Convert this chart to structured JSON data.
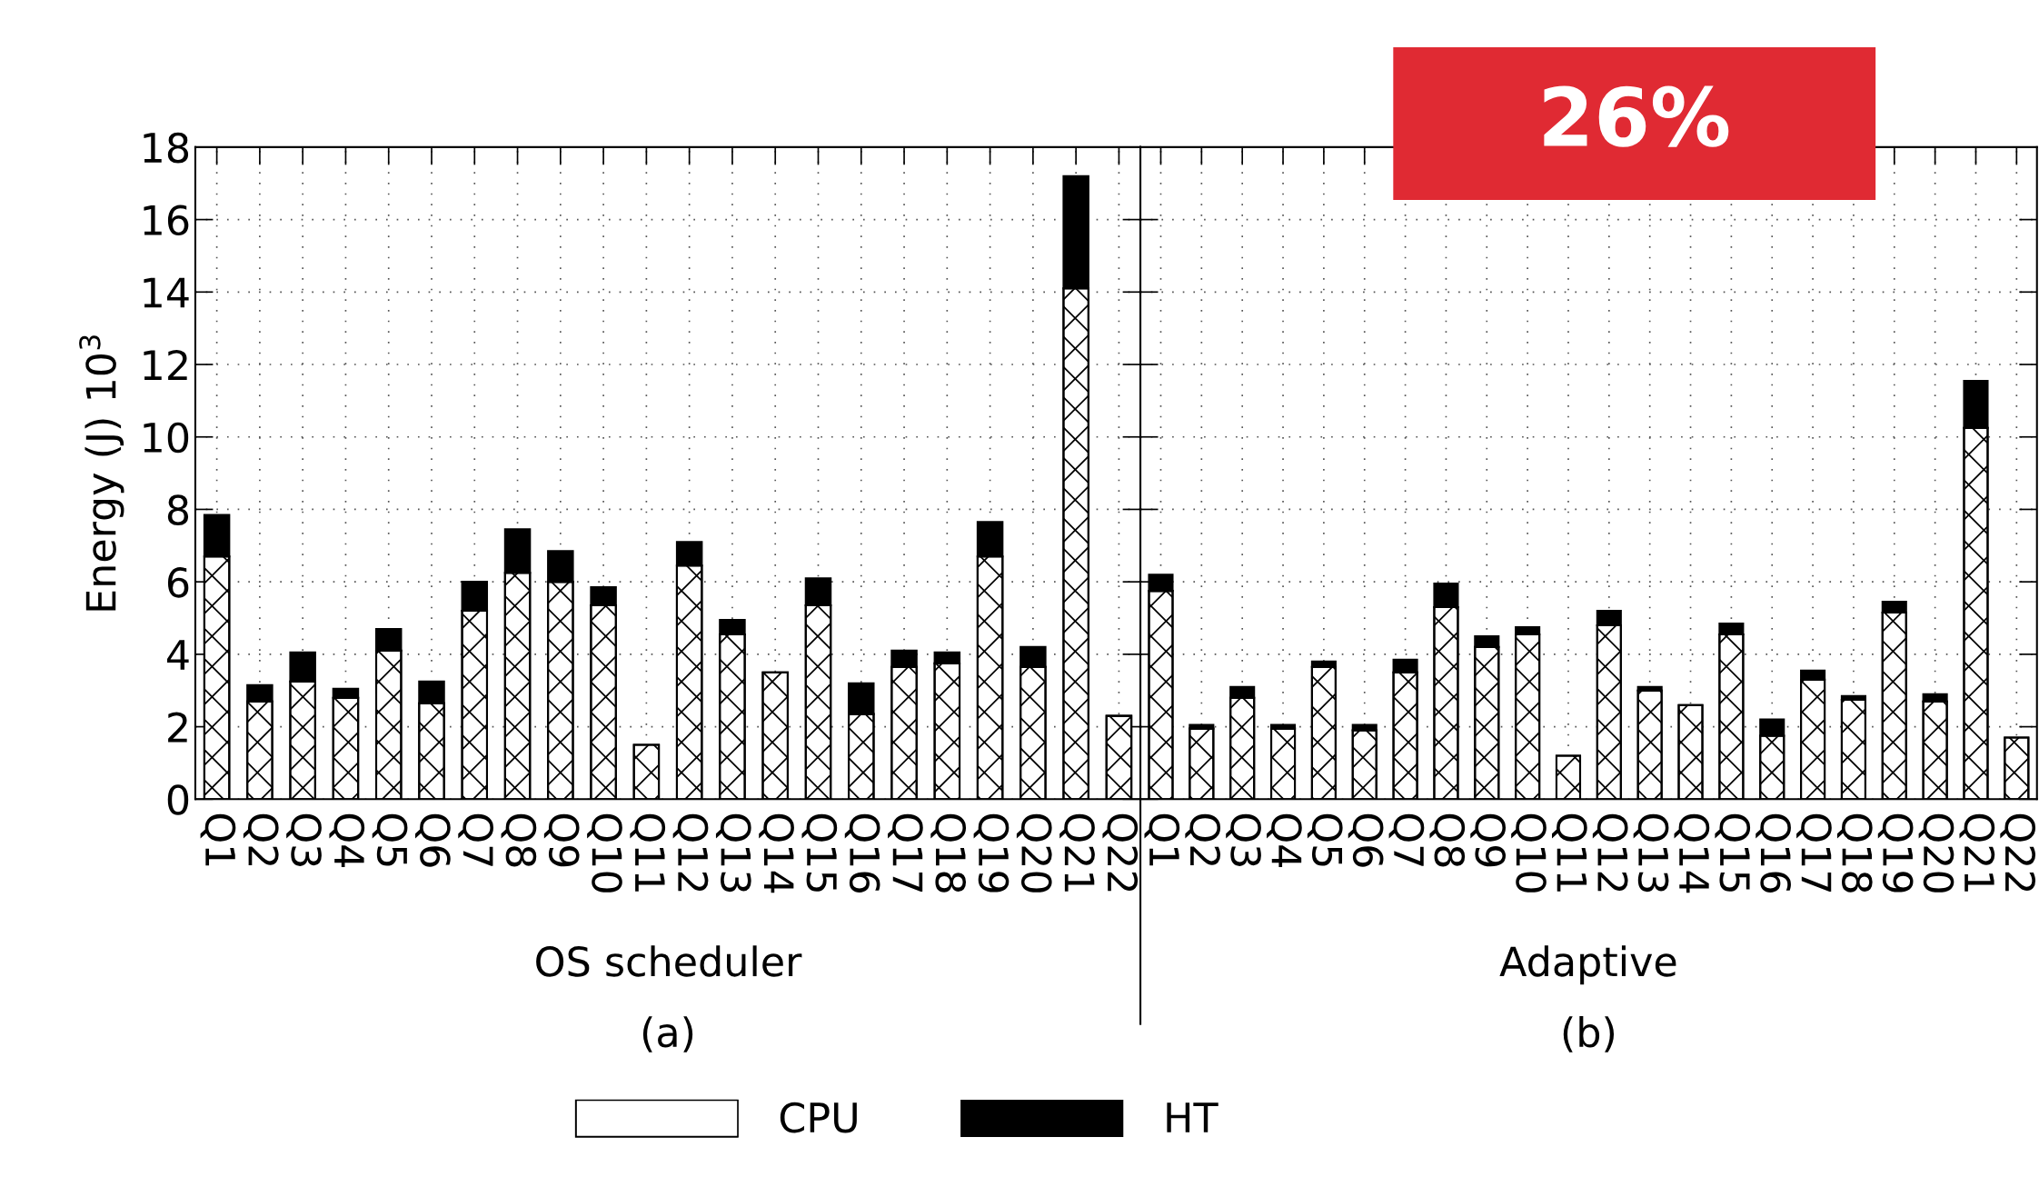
{
  "chart_data": [
    {
      "type": "bar",
      "stacked": true,
      "ylabel": "Energy (J) 10$^{3}$",
      "xlabel": "OS scheduler",
      "annotations": [
        "(a)"
      ],
      "categories": [
        "Q1",
        "Q2",
        "Q3",
        "Q4",
        "Q5",
        "Q6",
        "Q7",
        "Q8",
        "Q9",
        "Q10",
        "Q11",
        "Q12",
        "Q13",
        "Q14",
        "Q15",
        "Q16",
        "Q17",
        "Q18",
        "Q19",
        "Q20",
        "Q21",
        "Q22"
      ],
      "series": [
        {
          "name": "CPU",
          "color": "#ffffff",
          "values": [
            6.7,
            2.7,
            3.25,
            2.8,
            4.1,
            2.65,
            5.2,
            6.25,
            6.0,
            5.35,
            1.5,
            6.45,
            4.55,
            3.5,
            5.35,
            2.35,
            3.65,
            3.75,
            6.7,
            3.65,
            14.1,
            2.3
          ]
        },
        {
          "name": "HT",
          "color": "#000000",
          "values": [
            1.15,
            0.45,
            0.8,
            0.25,
            0.6,
            0.6,
            0.8,
            1.2,
            0.85,
            0.5,
            null,
            0.65,
            0.4,
            null,
            0.75,
            0.85,
            0.45,
            0.3,
            0.95,
            0.55,
            3.1,
            null
          ]
        }
      ],
      "ylim": [
        0,
        18
      ],
      "yticks": [
        0,
        2,
        4,
        6,
        8,
        10,
        12,
        14,
        16,
        18
      ],
      "grid": true,
      "legend": "bottom"
    },
    {
      "type": "bar",
      "stacked": true,
      "xlabel": "Adaptive",
      "annotations": [
        "(b)",
        "26%"
      ],
      "categories": [
        "Q1",
        "Q2",
        "Q3",
        "Q4",
        "Q5",
        "Q6",
        "Q7",
        "Q8",
        "Q9",
        "Q10",
        "Q11",
        "Q12",
        "Q13",
        "Q14",
        "Q15",
        "Q16",
        "Q17",
        "Q18",
        "Q19",
        "Q20",
        "Q21",
        "Q22"
      ],
      "series": [
        {
          "color": "#ffffff",
          "values": [
            5.75,
            1.95,
            2.8,
            1.95,
            3.65,
            1.9,
            3.5,
            5.3,
            4.2,
            4.55,
            1.2,
            4.8,
            3.0,
            2.6,
            4.55,
            1.75,
            3.3,
            2.75,
            5.15,
            2.7,
            10.25,
            1.7
          ]
        },
        {
          "color": "#000000",
          "values": [
            0.45,
            0.1,
            0.3,
            0.1,
            0.15,
            0.15,
            0.35,
            0.65,
            0.3,
            0.2,
            null,
            0.4,
            0.1,
            null,
            0.3,
            0.45,
            0.25,
            0.1,
            0.3,
            0.2,
            1.3,
            null
          ]
        }
      ],
      "ylim": [
        0,
        18
      ],
      "yticks": [
        0,
        2,
        4,
        6,
        8,
        10,
        12,
        14,
        16,
        18
      ],
      "grid": true,
      "tick_labels": "x"
    }
  ]
}
